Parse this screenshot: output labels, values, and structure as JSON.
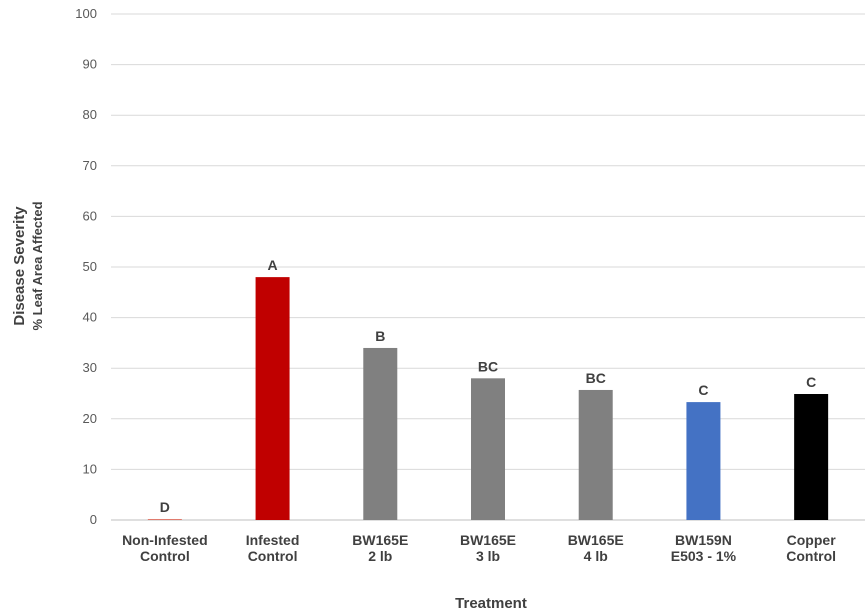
{
  "chart_data": {
    "type": "bar",
    "categories": [
      [
        "Non-Infested",
        "Control"
      ],
      [
        "Infested",
        "Control"
      ],
      [
        "BW165E",
        "2 lb"
      ],
      [
        "BW165E",
        "3 lb"
      ],
      [
        "BW165E",
        "4 lb"
      ],
      [
        "BW159N",
        "E503 - 1%"
      ],
      [
        "Copper",
        "Control"
      ]
    ],
    "values": [
      0.2,
      48,
      34,
      28,
      25.7,
      23.3,
      24.9
    ],
    "data_labels": [
      "D",
      "A",
      "B",
      "BC",
      "BC",
      "C",
      "C"
    ],
    "bar_colors": [
      "#e07b6e",
      "#c00000",
      "#808080",
      "#808080",
      "#808080",
      "#4472c4",
      "#000000"
    ],
    "xlabel": "Treatment",
    "ylabel": "Disease Severity",
    "ylabel_sub": "% Leaf Area Affected",
    "ylim": [
      0,
      100
    ],
    "yticks": [
      0,
      10,
      20,
      30,
      40,
      50,
      60,
      70,
      80,
      90,
      100
    ],
    "grid": true,
    "gridline_color": "#d9d9d9"
  }
}
